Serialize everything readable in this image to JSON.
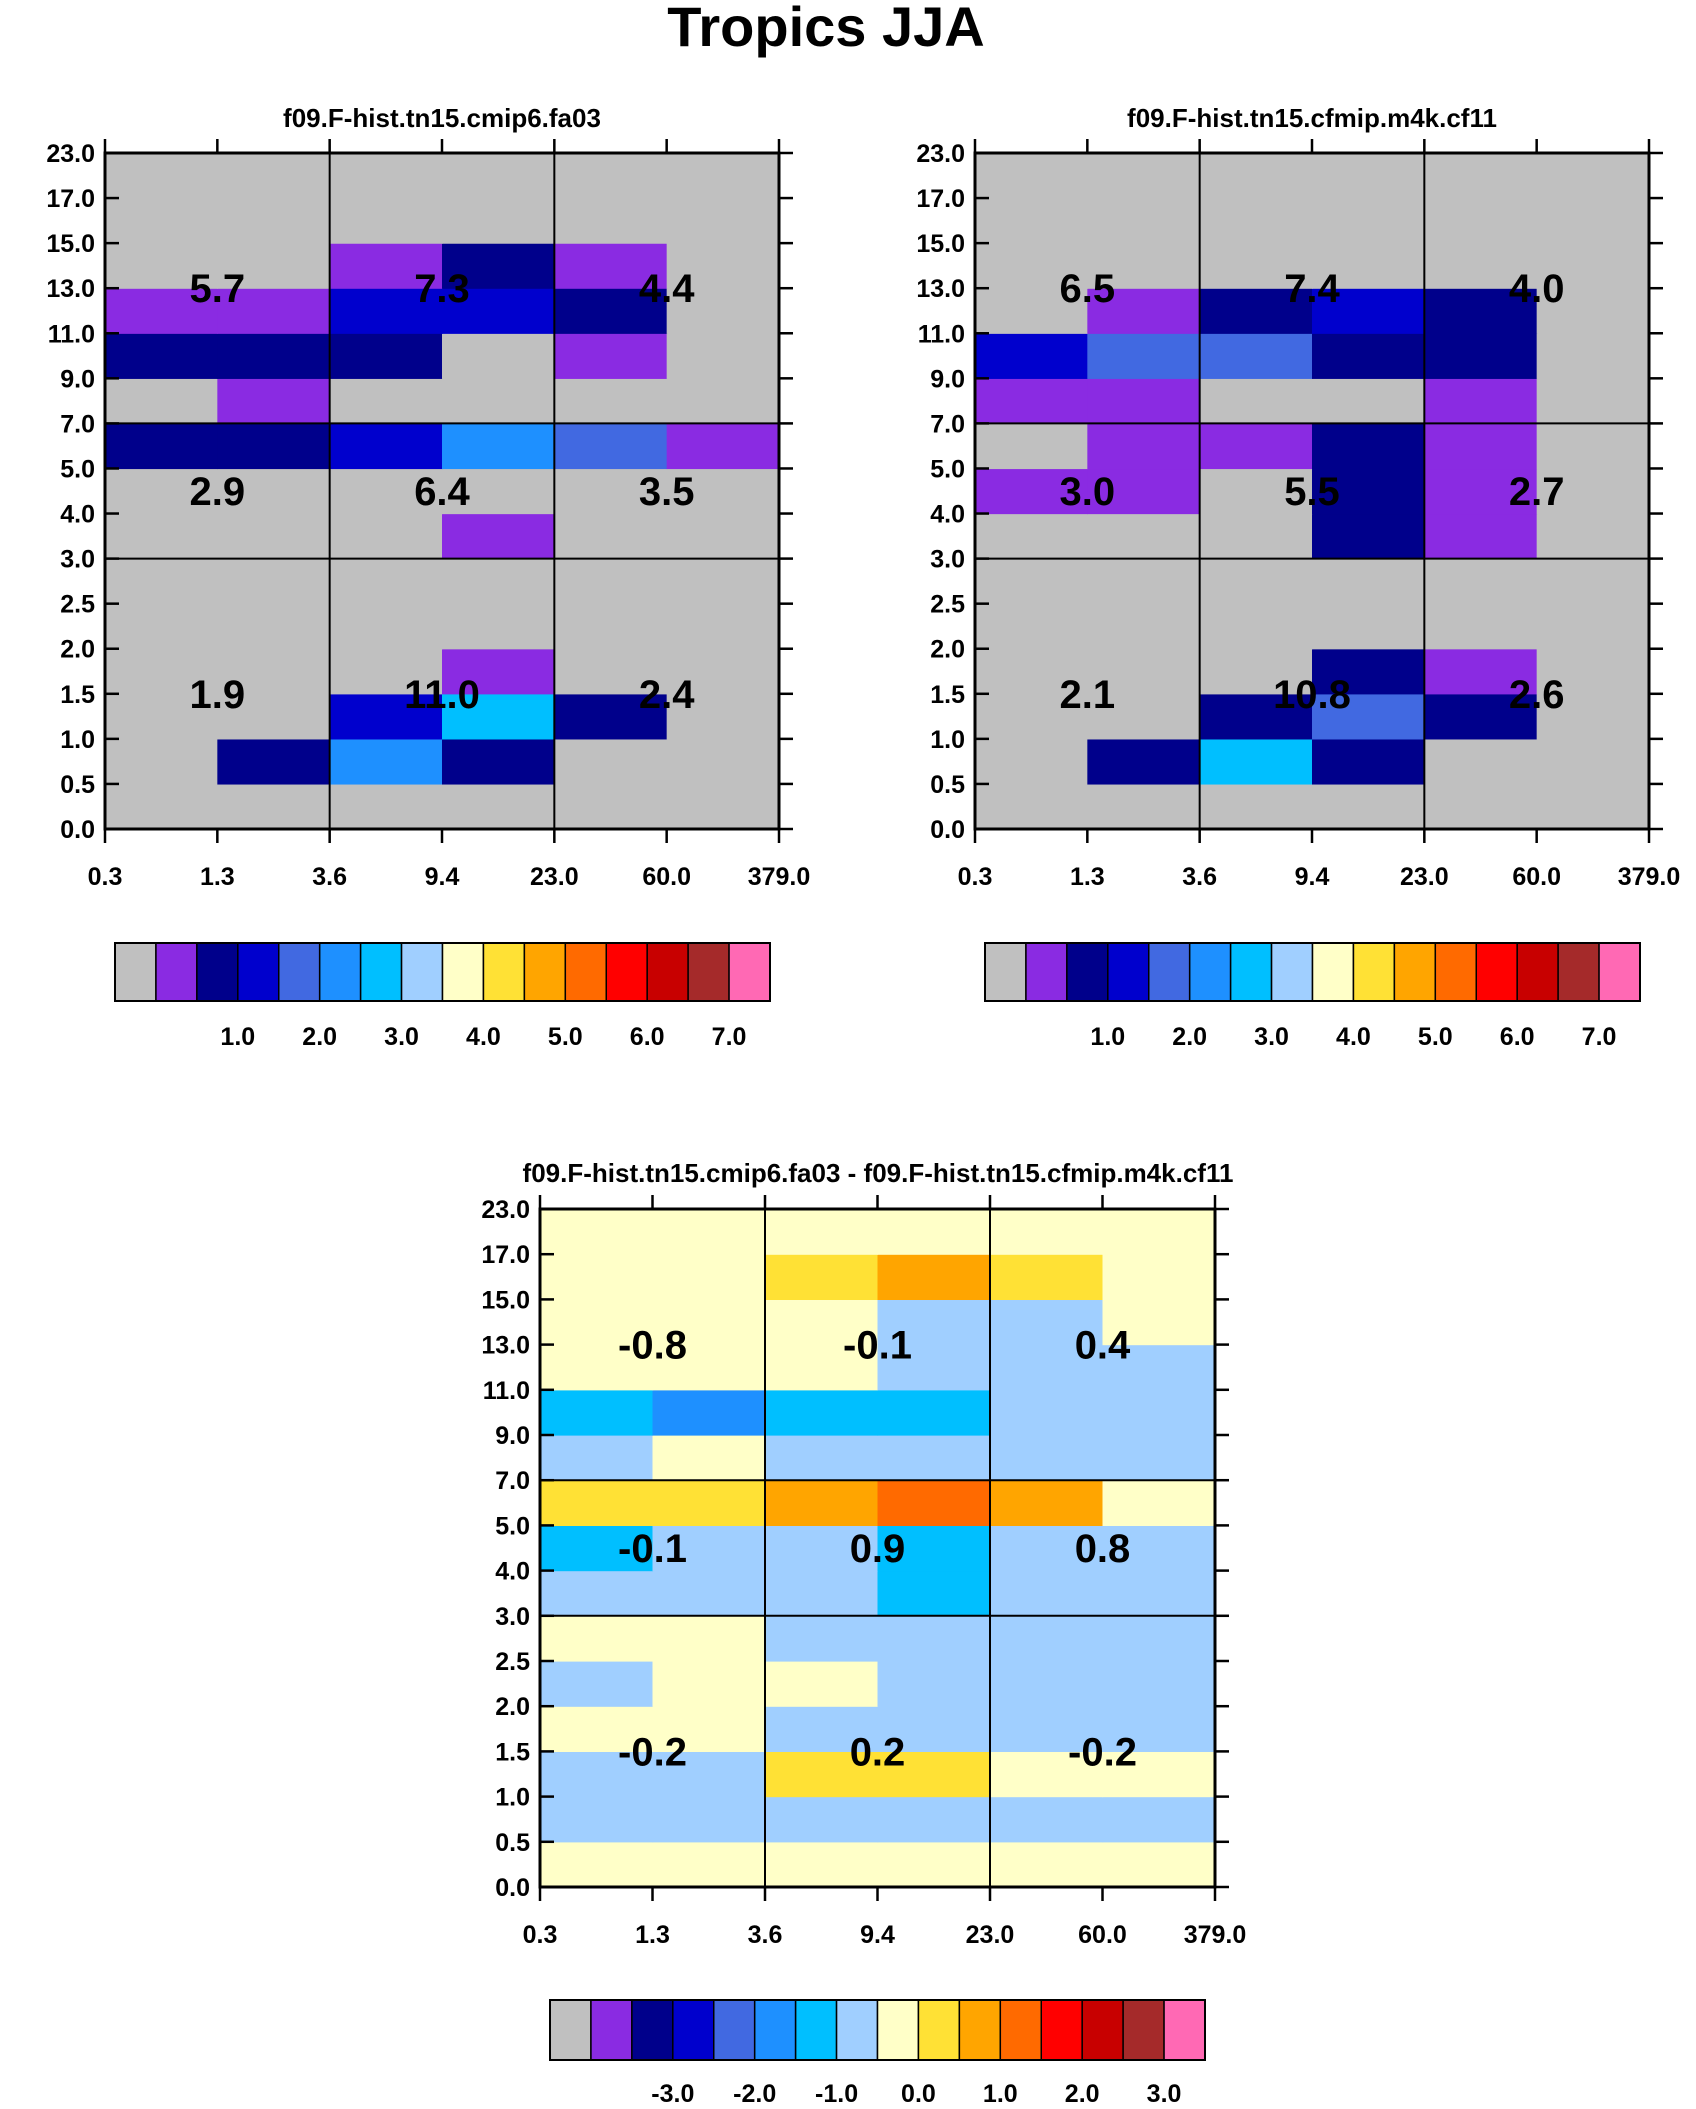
{
  "title": "Tropics JJA",
  "chart_data": [
    {
      "type": "heatmap",
      "title": "f09.F-hist.tn15.cmip6.fa03",
      "x_ticks": [
        "0.3",
        "1.3",
        "3.6",
        "9.4",
        "23.0",
        "60.0",
        "379.0"
      ],
      "y_ticks": [
        "0.0",
        "0.5",
        "1.0",
        "1.5",
        "2.0",
        "2.5",
        "3.0",
        "4.0",
        "5.0",
        "7.0",
        "9.0",
        "11.0",
        "13.0",
        "15.0",
        "17.0",
        "23.0"
      ],
      "cells": [
        [
          0,
          0,
          0,
          0,
          0,
          0
        ],
        [
          0,
          2,
          5,
          2,
          0,
          0
        ],
        [
          0,
          0,
          3,
          6,
          2,
          0
        ],
        [
          0,
          0,
          0,
          1,
          0,
          0
        ],
        [
          0,
          0,
          0,
          0,
          0,
          0
        ],
        [
          0,
          0,
          0,
          0,
          0,
          0
        ],
        [
          0,
          0,
          0,
          1,
          0,
          0
        ],
        [
          0,
          0,
          0,
          0,
          0,
          0
        ],
        [
          2,
          2,
          3,
          5,
          4,
          1
        ],
        [
          0,
          1,
          0,
          0,
          0,
          0
        ],
        [
          2,
          2,
          2,
          0,
          1,
          0
        ],
        [
          1,
          1,
          3,
          3,
          2,
          0
        ],
        [
          0,
          0,
          1,
          2,
          1,
          0
        ],
        [
          0,
          0,
          0,
          0,
          0,
          0
        ],
        [
          0,
          0,
          0,
          0,
          0,
          0
        ]
      ],
      "annotations": [
        {
          "row": 0,
          "col": 0,
          "text": "1.9"
        },
        {
          "row": 0,
          "col": 1,
          "text": "11.0"
        },
        {
          "row": 0,
          "col": 2,
          "text": "2.4"
        },
        {
          "row": 1,
          "col": 0,
          "text": "2.9"
        },
        {
          "row": 1,
          "col": 1,
          "text": "6.4"
        },
        {
          "row": 1,
          "col": 2,
          "text": "3.5"
        },
        {
          "row": 2,
          "col": 0,
          "text": "5.7"
        },
        {
          "row": 2,
          "col": 1,
          "text": "7.3"
        },
        {
          "row": 2,
          "col": 2,
          "text": "4.4"
        }
      ],
      "colorbar_labels": [
        "1.0",
        "2.0",
        "3.0",
        "4.0",
        "5.0",
        "6.0",
        "7.0"
      ]
    },
    {
      "type": "heatmap",
      "title": "f09.F-hist.tn15.cfmip.m4k.cf11",
      "x_ticks": [
        "0.3",
        "1.3",
        "3.6",
        "9.4",
        "23.0",
        "60.0",
        "379.0"
      ],
      "y_ticks": [
        "0.0",
        "0.5",
        "1.0",
        "1.5",
        "2.0",
        "2.5",
        "3.0",
        "4.0",
        "5.0",
        "7.0",
        "9.0",
        "11.0",
        "13.0",
        "15.0",
        "17.0",
        "23.0"
      ],
      "cells": [
        [
          0,
          0,
          0,
          0,
          0,
          0
        ],
        [
          0,
          2,
          6,
          2,
          0,
          0
        ],
        [
          0,
          0,
          2,
          4,
          2,
          0
        ],
        [
          0,
          0,
          0,
          2,
          1,
          0
        ],
        [
          0,
          0,
          0,
          0,
          0,
          0
        ],
        [
          0,
          0,
          0,
          0,
          0,
          0
        ],
        [
          0,
          0,
          0,
          2,
          1,
          0
        ],
        [
          1,
          1,
          0,
          2,
          1,
          0
        ],
        [
          0,
          1,
          1,
          2,
          1,
          0
        ],
        [
          1,
          1,
          0,
          0,
          1,
          0
        ],
        [
          3,
          4,
          4,
          2,
          2,
          0
        ],
        [
          0,
          1,
          2,
          3,
          2,
          0
        ],
        [
          0,
          0,
          0,
          0,
          0,
          0
        ],
        [
          0,
          0,
          0,
          0,
          0,
          0
        ],
        [
          0,
          0,
          0,
          0,
          0,
          0
        ]
      ],
      "annotations": [
        {
          "row": 0,
          "col": 0,
          "text": "2.1"
        },
        {
          "row": 0,
          "col": 1,
          "text": "10.8"
        },
        {
          "row": 0,
          "col": 2,
          "text": "2.6"
        },
        {
          "row": 1,
          "col": 0,
          "text": "3.0"
        },
        {
          "row": 1,
          "col": 1,
          "text": "5.5"
        },
        {
          "row": 1,
          "col": 2,
          "text": "2.7"
        },
        {
          "row": 2,
          "col": 0,
          "text": "6.5"
        },
        {
          "row": 2,
          "col": 1,
          "text": "7.4"
        },
        {
          "row": 2,
          "col": 2,
          "text": "4.0"
        }
      ],
      "colorbar_labels": [
        "1.0",
        "2.0",
        "3.0",
        "4.0",
        "5.0",
        "6.0",
        "7.0"
      ]
    },
    {
      "type": "heatmap",
      "title": "f09.F-hist.tn15.cmip6.fa03 - f09.F-hist.tn15.cfmip.m4k.cf11",
      "x_ticks": [
        "0.3",
        "1.3",
        "3.6",
        "9.4",
        "23.0",
        "60.0",
        "379.0"
      ],
      "y_ticks": [
        "0.0",
        "0.5",
        "1.0",
        "1.5",
        "2.0",
        "2.5",
        "3.0",
        "4.0",
        "5.0",
        "7.0",
        "9.0",
        "11.0",
        "13.0",
        "15.0",
        "17.0",
        "23.0"
      ],
      "cells": [
        [
          8,
          8,
          8,
          8,
          8,
          8
        ],
        [
          7,
          7,
          7,
          7,
          7,
          7
        ],
        [
          7,
          7,
          9,
          9,
          8,
          8
        ],
        [
          8,
          8,
          7,
          7,
          7,
          7
        ],
        [
          7,
          8,
          8,
          7,
          7,
          7
        ],
        [
          8,
          8,
          7,
          7,
          7,
          7
        ],
        [
          7,
          7,
          7,
          6,
          7,
          7
        ],
        [
          6,
          7,
          7,
          6,
          7,
          7
        ],
        [
          9,
          9,
          10,
          11,
          10,
          8
        ],
        [
          7,
          8,
          7,
          7,
          7,
          7
        ],
        [
          6,
          5,
          6,
          6,
          7,
          7
        ],
        [
          8,
          8,
          8,
          7,
          7,
          7
        ],
        [
          8,
          8,
          8,
          7,
          7,
          8
        ],
        [
          8,
          8,
          9,
          10,
          9,
          8
        ],
        [
          8,
          8,
          8,
          8,
          8,
          8
        ]
      ],
      "annotations": [
        {
          "row": 0,
          "col": 0,
          "text": "-0.2"
        },
        {
          "row": 0,
          "col": 1,
          "text": "0.2"
        },
        {
          "row": 0,
          "col": 2,
          "text": "-0.2"
        },
        {
          "row": 1,
          "col": 0,
          "text": "-0.1"
        },
        {
          "row": 1,
          "col": 1,
          "text": "0.9"
        },
        {
          "row": 1,
          "col": 2,
          "text": "0.8"
        },
        {
          "row": 2,
          "col": 0,
          "text": "-0.8"
        },
        {
          "row": 2,
          "col": 1,
          "text": "-0.1"
        },
        {
          "row": 2,
          "col": 2,
          "text": "0.4"
        }
      ],
      "colorbar_labels": [
        "-3.0",
        "-2.0",
        "-1.0",
        "0.0",
        "1.0",
        "2.0",
        "3.0"
      ]
    }
  ],
  "palette": [
    "#c0c0c0",
    "#8a2be2",
    "#00008b",
    "#0000cd",
    "#4169e1",
    "#1e90ff",
    "#00bfff",
    "#a0cfff",
    "#ffffc8",
    "#ffe135",
    "#ffa500",
    "#ff6a00",
    "#ff0000",
    "#c80000",
    "#a52a2a",
    "#ff69b4"
  ]
}
